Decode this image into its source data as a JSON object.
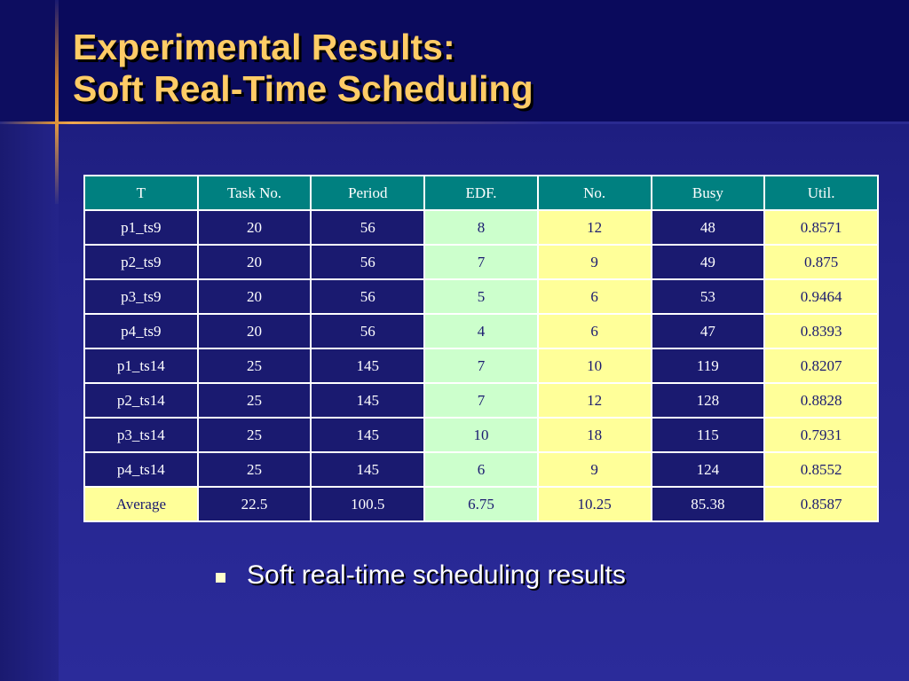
{
  "slide": {
    "title_line1": "Experimental Results:",
    "title_line2": "Soft Real-Time Scheduling",
    "bullet": "Soft real-time scheduling results"
  },
  "table": {
    "headers": [
      "T",
      "Task No.",
      "Period",
      "EDF.",
      "No.",
      "Busy",
      "Util."
    ],
    "rows": [
      [
        "p1_ts9",
        "20",
        "56",
        "8",
        "12",
        "48",
        "0.8571"
      ],
      [
        "p2_ts9",
        "20",
        "56",
        "7",
        "9",
        "49",
        "0.875"
      ],
      [
        "p3_ts9",
        "20",
        "56",
        "5",
        "6",
        "53",
        "0.9464"
      ],
      [
        "p4_ts9",
        "20",
        "56",
        "4",
        "6",
        "47",
        "0.8393"
      ],
      [
        "p1_ts14",
        "25",
        "145",
        "7",
        "10",
        "119",
        "0.8207"
      ],
      [
        "p2_ts14",
        "25",
        "145",
        "7",
        "12",
        "128",
        "0.8828"
      ],
      [
        "p3_ts14",
        "25",
        "145",
        "10",
        "18",
        "115",
        "0.7931"
      ],
      [
        "p4_ts14",
        "25",
        "145",
        "6",
        "9",
        "124",
        "0.8552"
      ]
    ],
    "average": [
      "Average",
      "22.5",
      "100.5",
      "6.75",
      "10.25",
      "85.38",
      "0.8587"
    ]
  },
  "colors": {
    "header_bg": "#008080",
    "navy_cell": "#1a1a70",
    "mint_cell": "#ccffcc",
    "yellow_cell": "#ffff99",
    "title": "#ffcc66"
  }
}
